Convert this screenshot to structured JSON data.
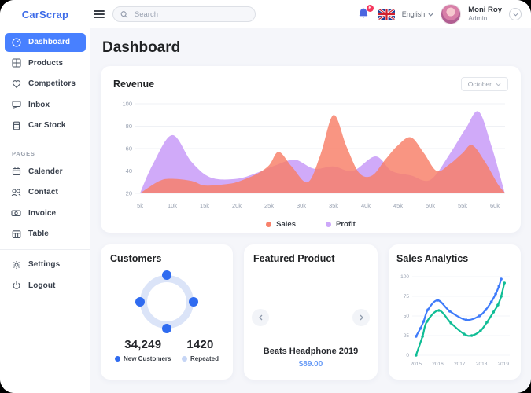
{
  "app": {
    "name": "CarScrap"
  },
  "topbar": {
    "search_placeholder": "Search",
    "notification_count": "6",
    "language": "English",
    "user_name": "Moni Roy",
    "user_role": "Admin",
    "icons": [
      "menu-icon",
      "search-icon",
      "bell-icon",
      "uk-flag-icon",
      "chevron-down-icon"
    ]
  },
  "sidebar": {
    "items": [
      {
        "label": "Dashboard",
        "icon": "speedometer-icon",
        "active": true
      },
      {
        "label": "Products",
        "icon": "grid-icon",
        "active": false
      },
      {
        "label": "Competitors",
        "icon": "heart-icon",
        "active": false
      },
      {
        "label": "Inbox",
        "icon": "chat-icon",
        "active": false
      },
      {
        "label": "Car Stock",
        "icon": "stack-icon",
        "active": false
      }
    ],
    "section_label": "PAGES",
    "page_items": [
      {
        "label": "Calender",
        "icon": "calendar-icon"
      },
      {
        "label": "Contact",
        "icon": "people-icon"
      },
      {
        "label": "Invoice",
        "icon": "banknote-icon"
      },
      {
        "label": "Table",
        "icon": "table-icon"
      }
    ],
    "footer_items": [
      {
        "label": "Settings",
        "icon": "gear-icon"
      },
      {
        "label": "Logout",
        "icon": "power-icon"
      }
    ]
  },
  "main": {
    "page_title": "Dashboard"
  },
  "revenue_card": {
    "title": "Revenue",
    "period_selector": "October",
    "legend": [
      {
        "label": "Sales",
        "color": "#F8816B"
      },
      {
        "label": "Profit",
        "color": "#CDA8F9"
      }
    ]
  },
  "customers_card": {
    "title": "Customers",
    "new_customers_value": "34,249",
    "new_customers_label": "New Customers",
    "repeated_value": "1420",
    "repeated_label": "Repeated",
    "new_color": "#2F6BF0",
    "repeated_color": "#C5D5F5",
    "ring_color": "#DBE4F8"
  },
  "featured_card": {
    "title": "Featured Product",
    "product_name": "Beats Headphone 2019",
    "product_price": "$89.00"
  },
  "analytics_card": {
    "title": "Sales Analytics"
  },
  "chart_data": [
    {
      "id": "revenue",
      "type": "area",
      "title": "Revenue",
      "xlabel": "",
      "ylabel": "",
      "ylim": [
        20,
        100
      ],
      "y_ticks": [
        20,
        40,
        60,
        80,
        100
      ],
      "x_tick_labels": [
        "5k",
        "10k",
        "15k",
        "20k",
        "25k",
        "30k",
        "35k",
        "40k",
        "45k",
        "50k",
        "55k",
        "60k"
      ],
      "grid": true,
      "legend_position": "bottom",
      "series": [
        {
          "name": "Profit",
          "color": "#CDA5F9",
          "opacity": 0.95,
          "points": [
            [
              5,
              20
            ],
            [
              7,
              46
            ],
            [
              10,
              72
            ],
            [
              13,
              48
            ],
            [
              16,
              34
            ],
            [
              20,
              33
            ],
            [
              23,
              38
            ],
            [
              26,
              45
            ],
            [
              29,
              50
            ],
            [
              32,
              42
            ],
            [
              35,
              44
            ],
            [
              38,
              40
            ],
            [
              41.5,
              53
            ],
            [
              44,
              40
            ],
            [
              47,
              36
            ],
            [
              50,
              32
            ],
            [
              53,
              55
            ],
            [
              55.5,
              78
            ],
            [
              57.5,
              93
            ],
            [
              59.5,
              62
            ],
            [
              61.5,
              21
            ]
          ]
        },
        {
          "name": "Sales",
          "color": "#F87E66",
          "opacity": 0.82,
          "points": [
            [
              5,
              20
            ],
            [
              8,
              31
            ],
            [
              10,
              33
            ],
            [
              13,
              31
            ],
            [
              15,
              27
            ],
            [
              18,
              28
            ],
            [
              20,
              30
            ],
            [
              23,
              37
            ],
            [
              25,
              45
            ],
            [
              26.5,
              57
            ],
            [
              28.5,
              44
            ],
            [
              31,
              30
            ],
            [
              33,
              55
            ],
            [
              35,
              90
            ],
            [
              37,
              62
            ],
            [
              39,
              38
            ],
            [
              41,
              36
            ],
            [
              43,
              50
            ],
            [
              45,
              63
            ],
            [
              47,
              70
            ],
            [
              49,
              56
            ],
            [
              51,
              40
            ],
            [
              53,
              46
            ],
            [
              55,
              56
            ],
            [
              56.5,
              63
            ],
            [
              58.5,
              48
            ],
            [
              60.5,
              28
            ],
            [
              61.5,
              21
            ]
          ]
        }
      ]
    },
    {
      "id": "analytics",
      "type": "line",
      "title": "Sales Analytics",
      "xlabel": "",
      "ylabel": "",
      "ylim": [
        0,
        100
      ],
      "y_ticks": [
        0,
        25,
        50,
        75,
        100
      ],
      "x_ticks": [
        2015,
        2016,
        2017,
        2018,
        2019
      ],
      "xlim": [
        2014.9,
        2019.15
      ],
      "grid": true,
      "legend_position": "none",
      "series": [
        {
          "name": "blue-series",
          "color": "#3E7BFA",
          "points": [
            [
              2015,
              24
            ],
            [
              2015.2,
              34
            ],
            [
              2015.35,
              43
            ],
            [
              2015.55,
              58
            ],
            [
              2016,
              70
            ],
            [
              2016.55,
              56
            ],
            [
              2017.3,
              45
            ],
            [
              2017.9,
              50
            ],
            [
              2018.2,
              58
            ],
            [
              2018.45,
              68
            ],
            [
              2018.65,
              78
            ],
            [
              2018.8,
              88
            ],
            [
              2018.9,
              97
            ]
          ]
        },
        {
          "name": "green-series",
          "color": "#0FBD95",
          "points": [
            [
              2015,
              0
            ],
            [
              2015.3,
              24
            ],
            [
              2015.5,
              43
            ],
            [
              2016.05,
              57
            ],
            [
              2016.6,
              41
            ],
            [
              2017.2,
              27
            ],
            [
              2017.55,
              25
            ],
            [
              2017.95,
              31
            ],
            [
              2018.25,
              42
            ],
            [
              2018.55,
              55
            ],
            [
              2018.75,
              64
            ],
            [
              2018.9,
              75
            ],
            [
              2019.05,
              92
            ]
          ]
        }
      ]
    }
  ]
}
